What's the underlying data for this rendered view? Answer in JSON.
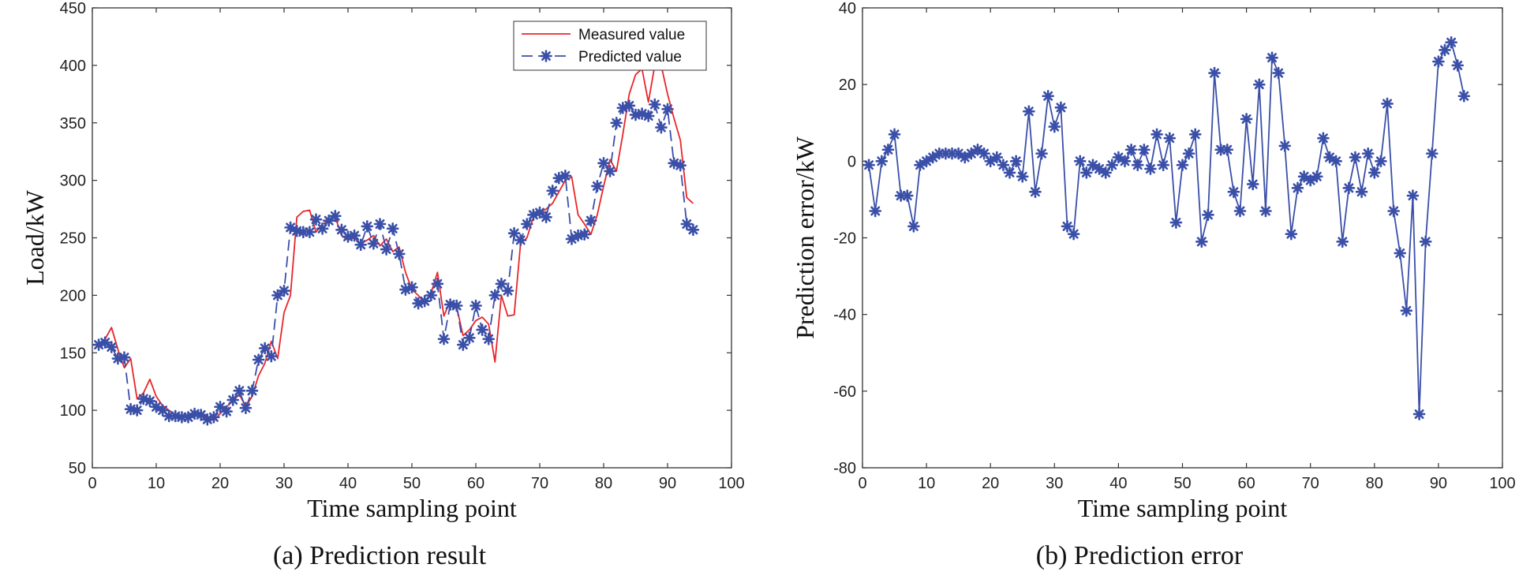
{
  "chart_data": [
    {
      "type": "line",
      "caption": "(a) Prediction result",
      "xlabel": "Time sampling point",
      "ylabel": "Load/kW",
      "xlim": [
        0,
        100
      ],
      "ylim": [
        50,
        450
      ],
      "xticks": [
        0,
        10,
        20,
        30,
        40,
        50,
        60,
        70,
        80,
        90,
        100
      ],
      "yticks": [
        50,
        100,
        150,
        200,
        250,
        300,
        350,
        400,
        450
      ],
      "grid": false,
      "legend": {
        "position": "top-right",
        "entries": [
          "Measured value",
          "Predicted value"
        ]
      },
      "series": [
        {
          "name": "Measured value",
          "color": "#e8262a",
          "style": "solid",
          "marker": "none",
          "x": [
            1,
            2,
            3,
            4,
            5,
            6,
            7,
            8,
            9,
            10,
            11,
            12,
            13,
            14,
            15,
            16,
            17,
            18,
            19,
            20,
            21,
            22,
            23,
            24,
            25,
            26,
            27,
            28,
            29,
            30,
            31,
            32,
            33,
            34,
            35,
            36,
            37,
            38,
            39,
            40,
            41,
            42,
            43,
            44,
            45,
            46,
            47,
            48,
            49,
            50,
            51,
            52,
            53,
            54,
            55,
            56,
            57,
            58,
            59,
            60,
            61,
            62,
            63,
            64,
            65,
            66,
            67,
            68,
            69,
            70,
            71,
            72,
            73,
            74,
            75,
            76,
            77,
            78,
            79,
            80,
            81,
            82,
            83,
            84,
            85,
            86,
            87,
            88,
            89,
            90,
            91,
            92,
            93,
            94
          ],
          "values": [
            158,
            162,
            172,
            153,
            137,
            145,
            110,
            115,
            127,
            112,
            104,
            100,
            96,
            94,
            96,
            95,
            98,
            94,
            91,
            97,
            103,
            108,
            114,
            103,
            112,
            130,
            141,
            160,
            145,
            185,
            200,
            268,
            273,
            274,
            255,
            262,
            265,
            268,
            252,
            248,
            250,
            245,
            248,
            252,
            243,
            249,
            238,
            242,
            220,
            205,
            200,
            193,
            202,
            220,
            182,
            195,
            190,
            165,
            170,
            178,
            181,
            175,
            142,
            200,
            182,
            183,
            245,
            250,
            268,
            272,
            275,
            280,
            290,
            300,
            303,
            270,
            262,
            253,
            270,
            295,
            318,
            308,
            340,
            375,
            392,
            397,
            368,
            400,
            400,
            375,
            354,
            335,
            285,
            280
          ]
        },
        {
          "name": "Predicted value",
          "color": "#3a4fa8",
          "style": "dashed",
          "marker": "asterisk",
          "x": [
            1,
            2,
            3,
            4,
            5,
            6,
            7,
            8,
            9,
            10,
            11,
            12,
            13,
            14,
            15,
            16,
            17,
            18,
            19,
            20,
            21,
            22,
            23,
            24,
            25,
            26,
            27,
            28,
            29,
            30,
            31,
            32,
            33,
            34,
            35,
            36,
            37,
            38,
            39,
            40,
            41,
            42,
            43,
            44,
            45,
            46,
            47,
            48,
            49,
            50,
            51,
            52,
            53,
            54,
            55,
            56,
            57,
            58,
            59,
            60,
            61,
            62,
            63,
            64,
            65,
            66,
            67,
            68,
            69,
            70,
            71,
            72,
            73,
            74,
            75,
            76,
            77,
            78,
            79,
            80,
            81,
            82,
            83,
            84,
            85,
            86,
            87,
            88,
            89,
            90,
            91,
            92,
            93,
            94
          ],
          "values": [
            157,
            159,
            155,
            145,
            146,
            101,
            100,
            110,
            108,
            103,
            100,
            95,
            95,
            94,
            94,
            97,
            96,
            92,
            94,
            103,
            99,
            109,
            117,
            102,
            117,
            144,
            154,
            147,
            200,
            204,
            259,
            256,
            255,
            255,
            266,
            258,
            265,
            269,
            257,
            251,
            252,
            244,
            260,
            245,
            262,
            240,
            258,
            236,
            205,
            207,
            193,
            195,
            200,
            210,
            162,
            192,
            191,
            157,
            163,
            191,
            170,
            162,
            200,
            210,
            204,
            254,
            248,
            262,
            270,
            272,
            268,
            291,
            302,
            304,
            249,
            252,
            253,
            265,
            295,
            315,
            308,
            350,
            363,
            365,
            357,
            358,
            356,
            366,
            346,
            362,
            315,
            313,
            262,
            257
          ]
        }
      ]
    },
    {
      "type": "line",
      "caption": "(b) Prediction error",
      "xlabel": "Time sampling point",
      "ylabel": "Prediction error/kW",
      "xlim": [
        0,
        100
      ],
      "ylim": [
        -80,
        40
      ],
      "xticks": [
        0,
        10,
        20,
        30,
        40,
        50,
        60,
        70,
        80,
        90,
        100
      ],
      "yticks": [
        -80,
        -60,
        -40,
        -20,
        0,
        20,
        40
      ],
      "grid": false,
      "series": [
        {
          "name": "Prediction error",
          "color": "#3a4fa8",
          "style": "solid",
          "marker": "asterisk",
          "x": [
            1,
            2,
            3,
            4,
            5,
            6,
            7,
            8,
            9,
            10,
            11,
            12,
            13,
            14,
            15,
            16,
            17,
            18,
            19,
            20,
            21,
            22,
            23,
            24,
            25,
            26,
            27,
            28,
            29,
            30,
            31,
            32,
            33,
            34,
            35,
            36,
            37,
            38,
            39,
            40,
            41,
            42,
            43,
            44,
            45,
            46,
            47,
            48,
            49,
            50,
            51,
            52,
            53,
            54,
            55,
            56,
            57,
            58,
            59,
            60,
            61,
            62,
            63,
            64,
            65,
            66,
            67,
            68,
            69,
            70,
            71,
            72,
            73,
            74,
            75,
            76,
            77,
            78,
            79,
            80,
            81,
            82,
            83,
            84,
            85,
            86,
            87,
            88,
            89,
            90,
            91,
            92,
            93,
            94
          ],
          "values": [
            -1,
            -13,
            0,
            3,
            7,
            -9,
            -9,
            -17,
            -1,
            0,
            1,
            2,
            2,
            2,
            2,
            1,
            2,
            3,
            2,
            0,
            1,
            -1,
            -3,
            0,
            -4,
            13,
            -8,
            2,
            17,
            9,
            14,
            -17,
            -19,
            0,
            -3,
            -1,
            -2,
            -3,
            -1,
            1,
            0,
            3,
            -1,
            3,
            -2,
            7,
            -1,
            6,
            -16,
            -1,
            2,
            7,
            -21,
            -14,
            23,
            3,
            3,
            -8,
            -13,
            11,
            -6,
            20,
            -13,
            27,
            23,
            4,
            -19,
            -7,
            -4,
            -5,
            -4,
            6,
            1,
            0,
            -21,
            -7,
            1,
            -8,
            2,
            -3,
            0,
            15,
            -13,
            -24,
            -39,
            -9,
            -66,
            -21,
            2,
            26,
            29,
            31,
            25,
            17
          ]
        }
      ]
    }
  ]
}
